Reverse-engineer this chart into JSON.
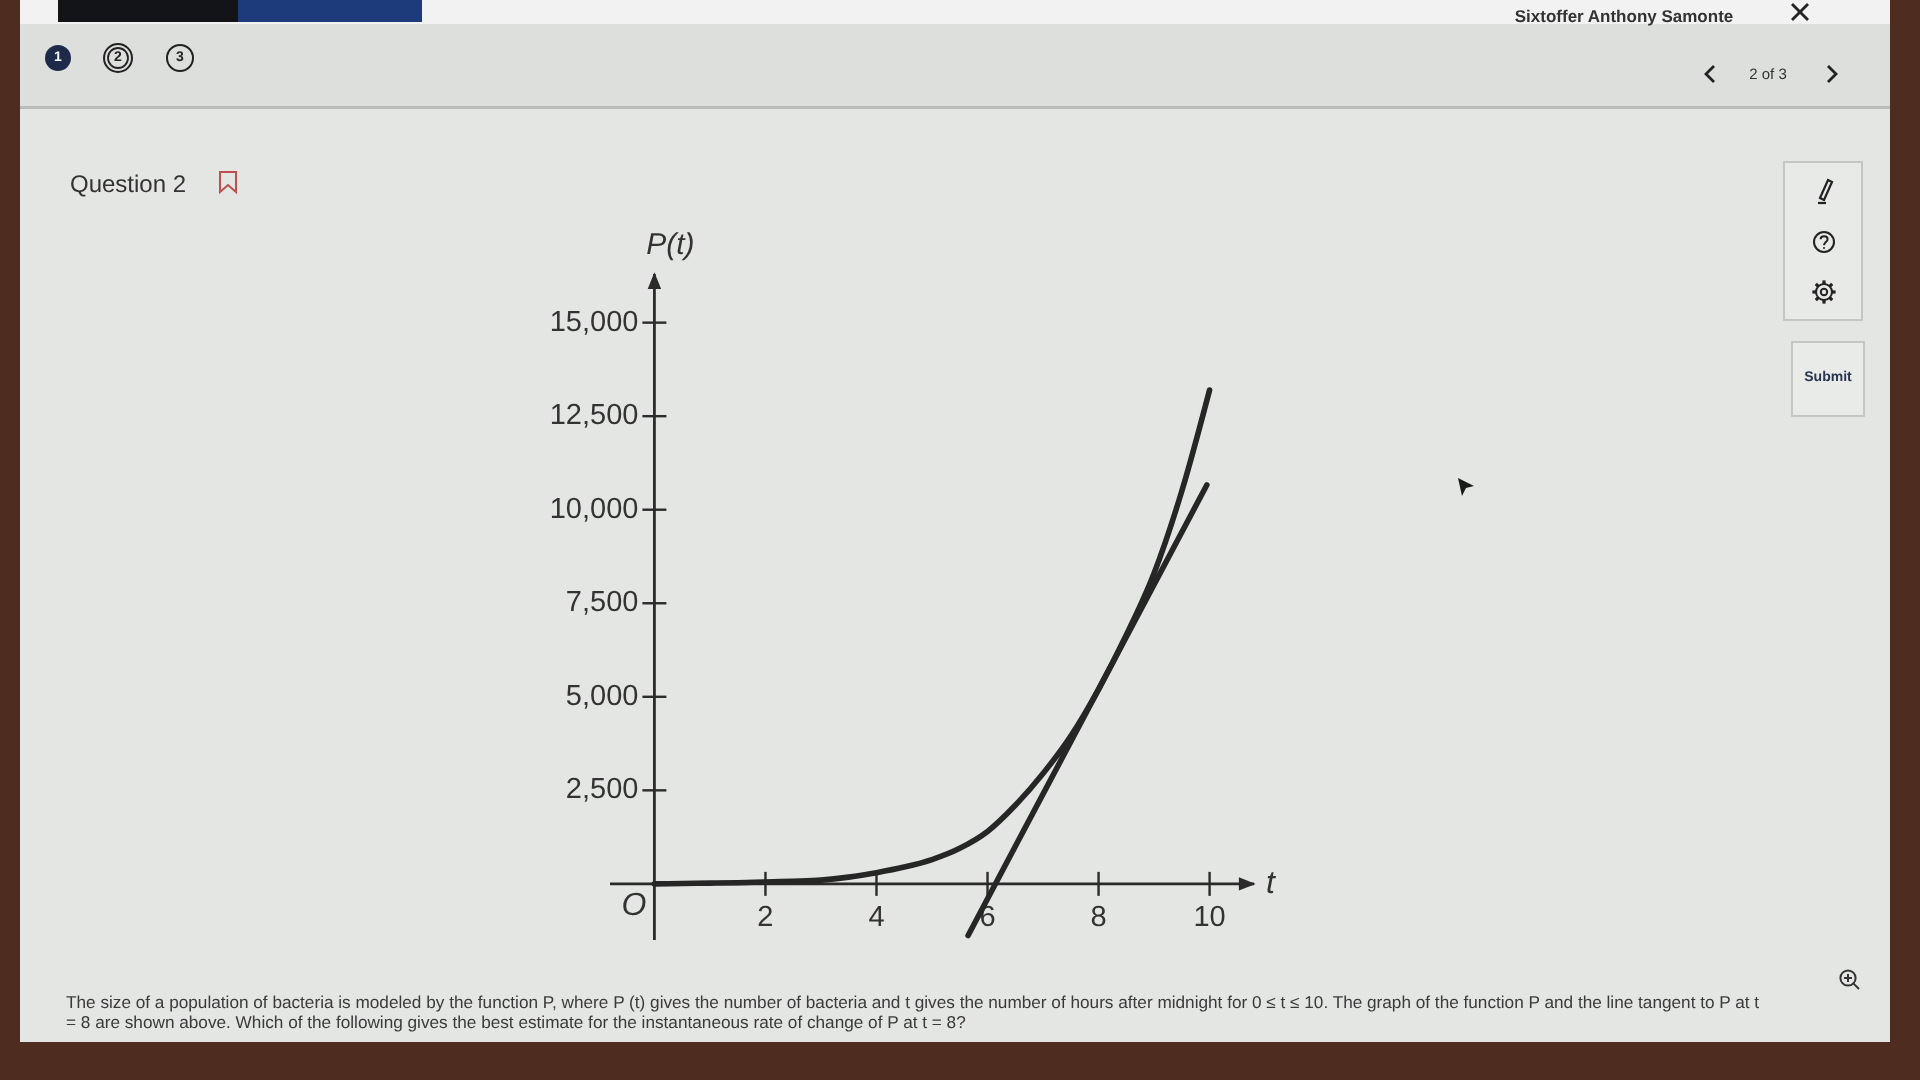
{
  "chart_data": {
    "type": "line",
    "title": "Question 2",
    "xlabel": "t",
    "ylabel": "P(t)",
    "xlim": [
      -0.8,
      10.8
    ],
    "ylim": [
      -1500,
      16300
    ],
    "xticks": [
      2,
      4,
      6,
      8,
      10
    ],
    "yticks": [
      {
        "value": 2500,
        "label": "2,500"
      },
      {
        "value": 5000,
        "label": "5,000"
      },
      {
        "value": 7500,
        "label": "7,500"
      },
      {
        "value": 10000,
        "label": "10,000"
      },
      {
        "value": 12500,
        "label": "12,500"
      },
      {
        "value": 15000,
        "label": "15,000"
      }
    ],
    "series": [
      {
        "color": "#262626",
        "x": [
          0,
          0.5,
          1,
          1.5,
          2,
          2.5,
          3,
          3.5,
          4,
          4.5,
          5,
          5.5,
          6,
          6.5,
          7,
          7.5,
          8,
          8.5,
          9,
          9.5,
          10
        ],
        "values": [
          0,
          10,
          20,
          30,
          50,
          70,
          100,
          180,
          300,
          450,
          650,
          950,
          1400,
          2100,
          2950,
          3950,
          5200,
          6650,
          8300,
          10500,
          13200
        ]
      },
      {
        "color": "#262626",
        "x": [
          5.65,
          9.95
        ],
        "values": [
          -1380,
          10660
        ]
      }
    ],
    "annotations": [
      {
        "text": "O",
        "x": 0,
        "y": 0
      },
      "The size of a population of bacteria is modeled by the function P, where P (t) gives the number of bacteria and t gives the number of hours after midnight for 0 ≤ t ≤ 10. The graph of the function P and the line tangent to P at t = 8 are shown above. Which of the following gives the best estimate for the instantaneous rate of change of P at t = 8?",
      "Sixtoffer Anthony Samonte",
      "1",
      "2",
      "3",
      "2 of 3",
      "Submit"
    ]
  }
}
